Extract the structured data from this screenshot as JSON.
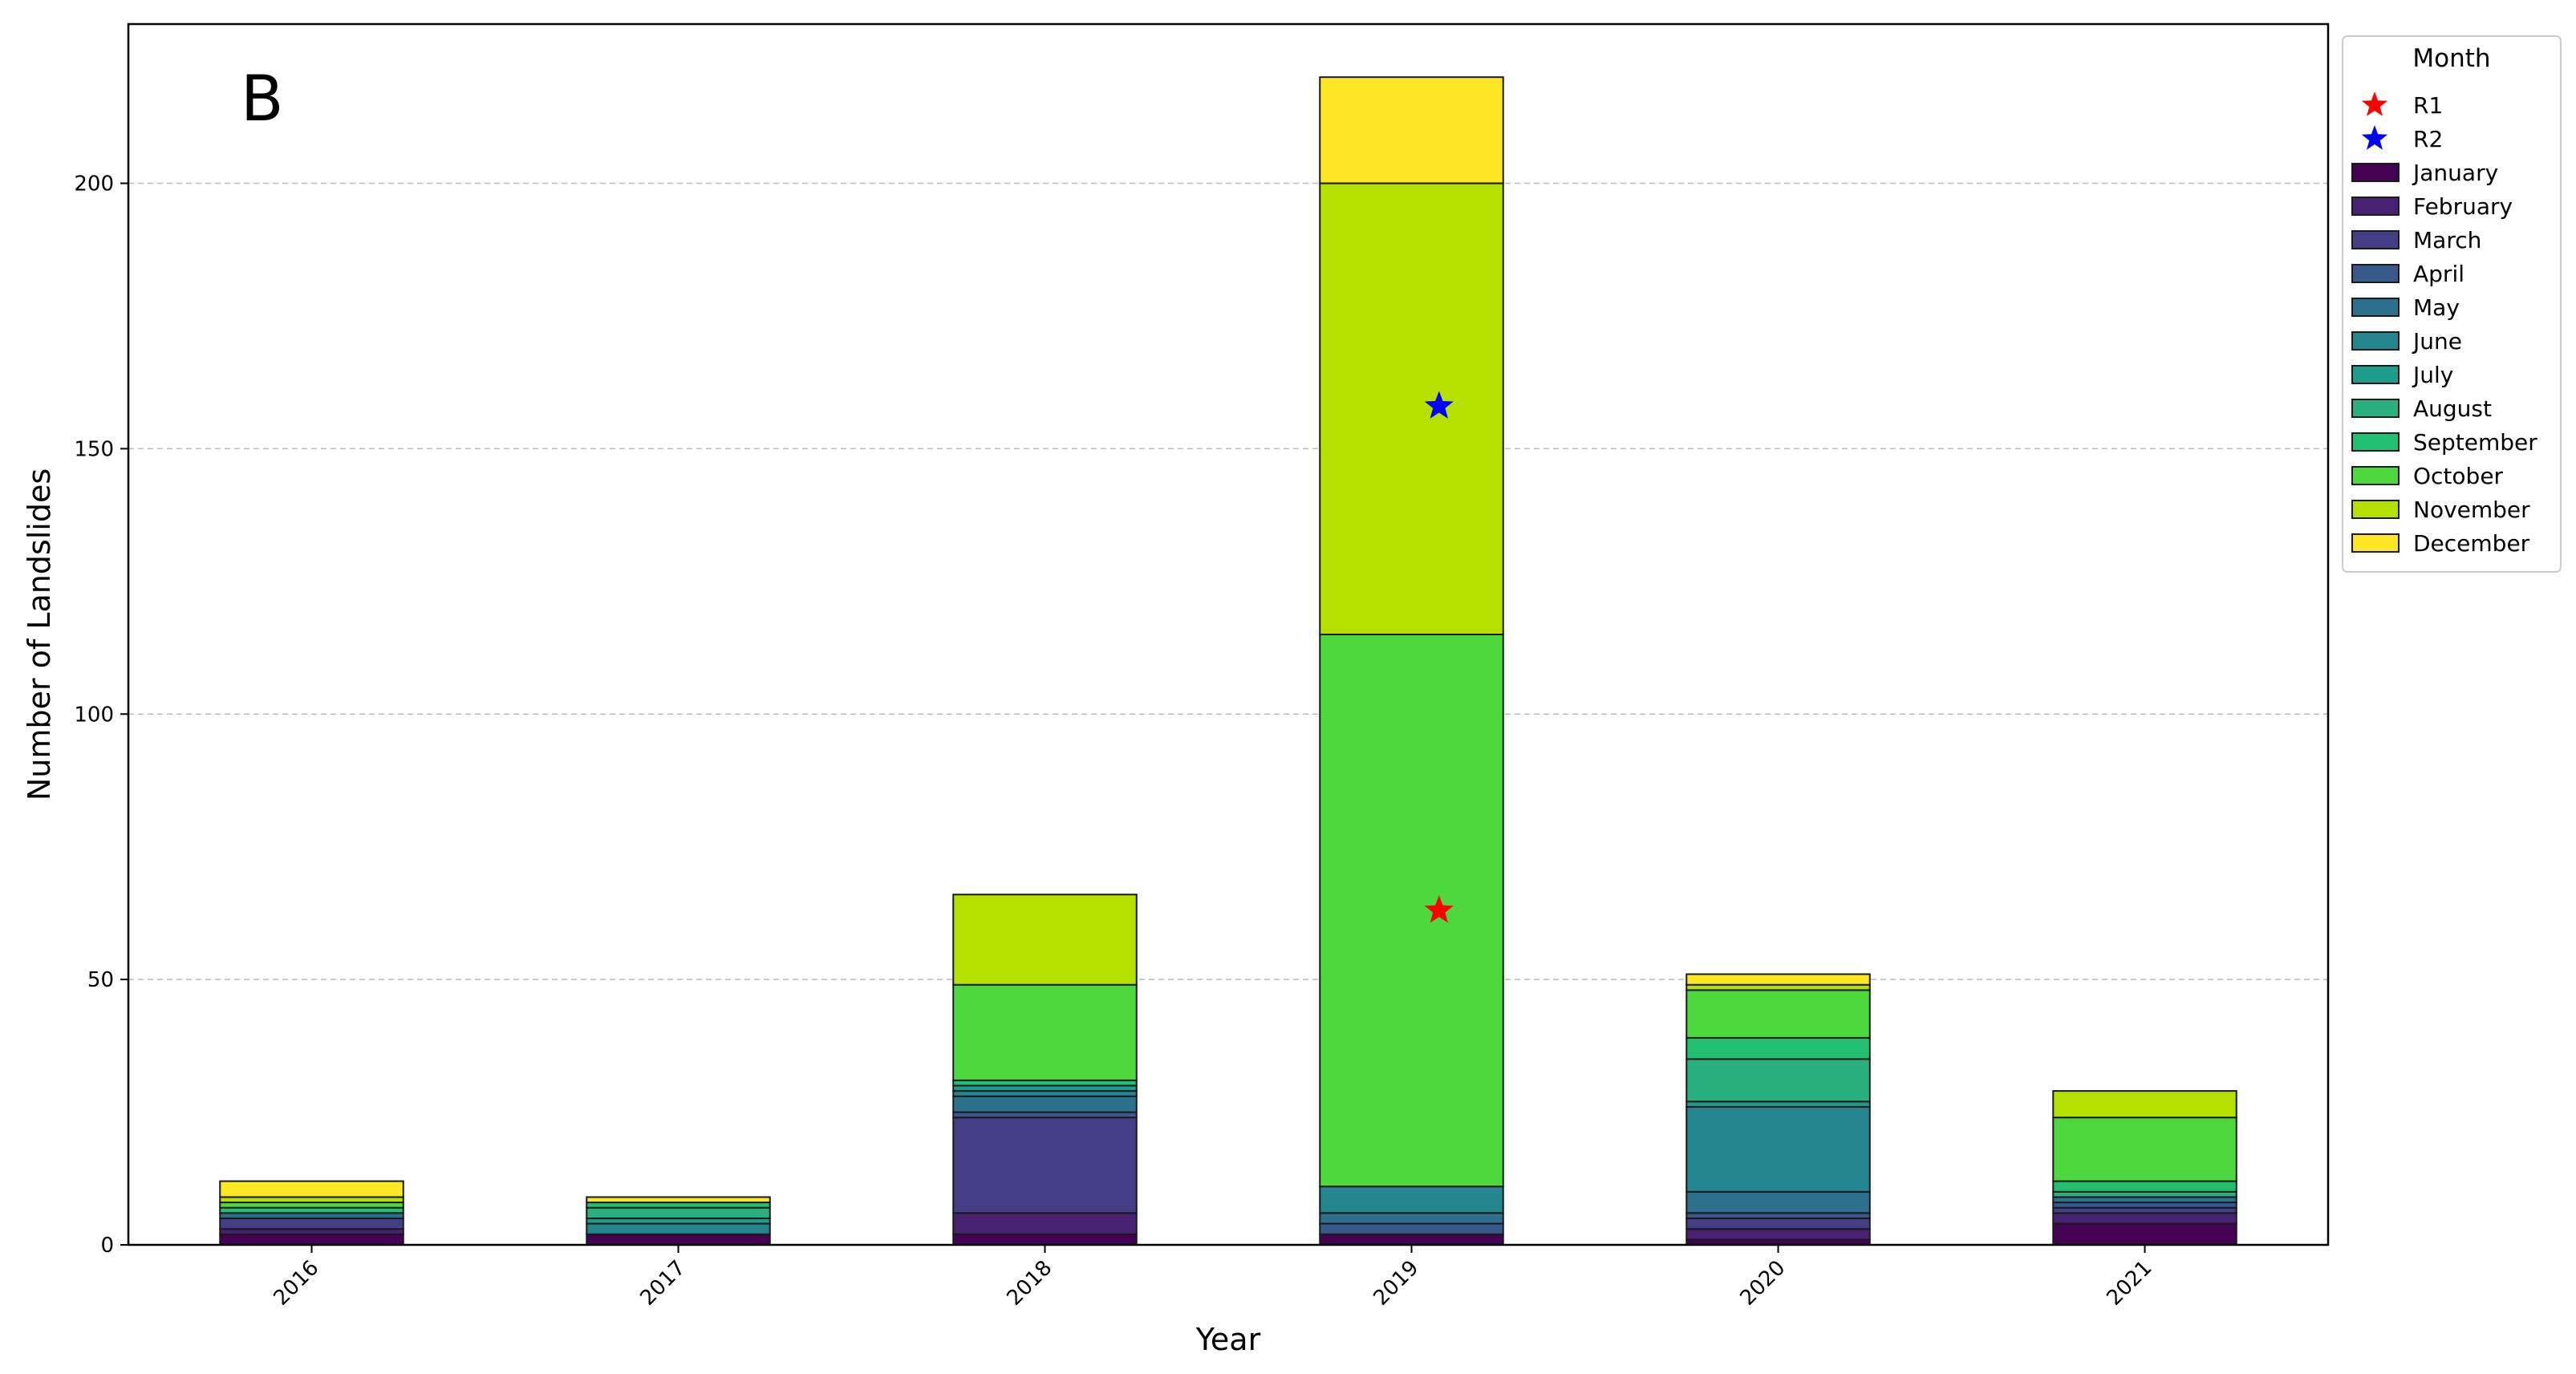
{
  "chart_data": {
    "type": "bar",
    "stacked": true,
    "panel_label": "B",
    "xlabel": "Year",
    "ylabel": "Number of Landslides",
    "ylim": [
      0,
      230
    ],
    "yticks": [
      0,
      50,
      100,
      150,
      200
    ],
    "grid": "y-dashed",
    "categories": [
      "2016",
      "2017",
      "2018",
      "2019",
      "2020",
      "2021"
    ],
    "legend": {
      "title": "Month",
      "placement": "outside-top-right"
    },
    "series": [
      {
        "name": "January",
        "color": "#440154",
        "values": [
          2,
          2,
          2,
          2,
          1,
          4
        ]
      },
      {
        "name": "February",
        "color": "#482173",
        "values": [
          1,
          0,
          4,
          0,
          2,
          2
        ]
      },
      {
        "name": "March",
        "color": "#433e85",
        "values": [
          2,
          0,
          18,
          0,
          2,
          1
        ]
      },
      {
        "name": "April",
        "color": "#38598c",
        "values": [
          0,
          0,
          1,
          2,
          1,
          1
        ]
      },
      {
        "name": "May",
        "color": "#2d708e",
        "values": [
          1,
          0,
          3,
          2,
          4,
          1
        ]
      },
      {
        "name": "June",
        "color": "#25858e",
        "values": [
          0,
          2,
          1,
          5,
          16,
          0
        ]
      },
      {
        "name": "July",
        "color": "#1e9b8a",
        "values": [
          0,
          1,
          1,
          0,
          1,
          0
        ]
      },
      {
        "name": "August",
        "color": "#2ab07f",
        "values": [
          0,
          2,
          0,
          0,
          8,
          1
        ]
      },
      {
        "name": "September",
        "color": "#20c070",
        "values": [
          1,
          1,
          1,
          0,
          4,
          2
        ]
      },
      {
        "name": "October",
        "color": "#4dd83e",
        "values": [
          1,
          0,
          18,
          104,
          9,
          12
        ]
      },
      {
        "name": "November",
        "color": "#b5e000",
        "values": [
          1,
          0,
          17,
          85,
          1,
          5
        ]
      },
      {
        "name": "December",
        "color": "#fde725",
        "values": [
          3,
          1,
          0,
          20,
          2,
          0
        ]
      }
    ],
    "markers": [
      {
        "name": "R1",
        "symbol": "star",
        "color": "#ff0000",
        "x": "2019",
        "y": 63
      },
      {
        "name": "R2",
        "symbol": "star",
        "color": "#0000ff",
        "x": "2019",
        "y": 158
      }
    ]
  }
}
